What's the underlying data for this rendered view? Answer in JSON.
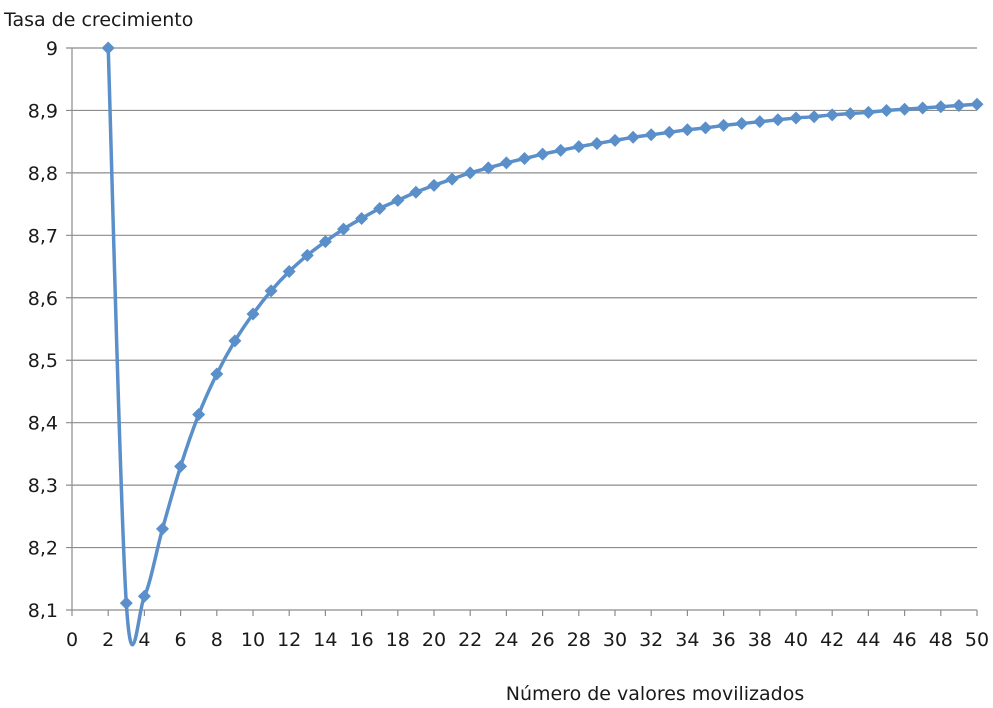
{
  "chart_data": {
    "type": "line",
    "title": "",
    "xlabel": "Número de valores movilizados",
    "ylabel": "Tasa de crecimiento",
    "xlim": [
      0,
      50
    ],
    "ylim": [
      8.1,
      9
    ],
    "x_ticks": [
      "0",
      "2",
      "4",
      "6",
      "8",
      "10",
      "12",
      "14",
      "16",
      "18",
      "20",
      "22",
      "24",
      "26",
      "28",
      "30",
      "32",
      "34",
      "36",
      "38",
      "40",
      "42",
      "44",
      "46",
      "48",
      "50"
    ],
    "y_ticks": [
      "8,1",
      "8,2",
      "8,3",
      "8,4",
      "8,5",
      "8,6",
      "8,7",
      "8,8",
      "8,9",
      "9"
    ],
    "grid": true,
    "legend": "none",
    "series": [
      {
        "color": "#5b8fc9",
        "marker": "diamond",
        "x": [
          2,
          3,
          4,
          5,
          6,
          7,
          8,
          9,
          10,
          11,
          12,
          13,
          14,
          15,
          16,
          17,
          18,
          19,
          20,
          21,
          22,
          23,
          24,
          25,
          26,
          27,
          28,
          29,
          30,
          31,
          32,
          33,
          34,
          35,
          36,
          37,
          38,
          39,
          40,
          41,
          42,
          43,
          44,
          45,
          46,
          47,
          48,
          49,
          50
        ],
        "y": [
          9.0,
          8.111,
          8.122,
          8.23,
          8.33,
          8.413,
          8.478,
          8.531,
          8.574,
          8.611,
          8.642,
          8.668,
          8.69,
          8.71,
          8.727,
          8.743,
          8.756,
          8.769,
          8.78,
          8.79,
          8.8,
          8.808,
          8.816,
          8.823,
          8.83,
          8.836,
          8.842,
          8.847,
          8.852,
          8.857,
          8.861,
          8.865,
          8.869,
          8.872,
          8.876,
          8.879,
          8.882,
          8.885,
          8.888,
          8.89,
          8.893,
          8.895,
          8.897,
          8.9,
          8.902,
          8.904,
          8.906,
          8.908,
          8.91
        ]
      }
    ]
  }
}
